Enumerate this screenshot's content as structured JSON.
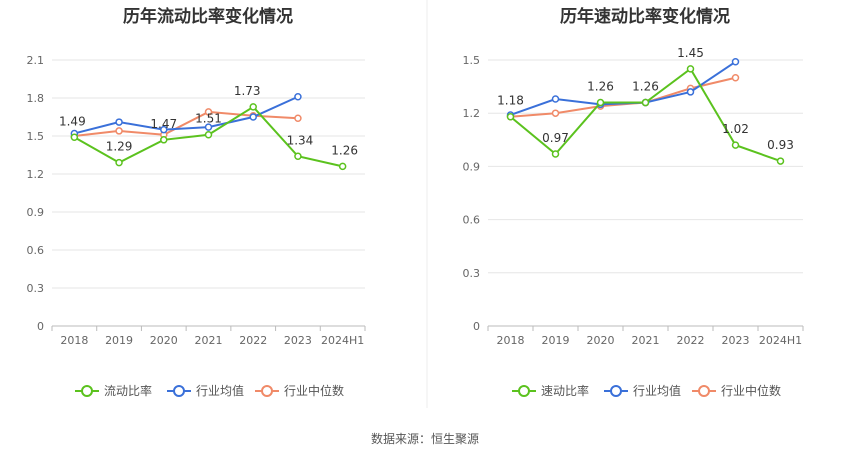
{
  "source_label": "数据来源：恒生聚源",
  "colors": {
    "main": "#5bc21e",
    "avg": "#3a70d9",
    "median": "#f08a68"
  },
  "legend": [
    "行业均值",
    "行业中位数"
  ],
  "chart_data": [
    {
      "type": "line",
      "title": "历年流动比率变化情况",
      "x": [
        "2018",
        "2019",
        "2020",
        "2021",
        "2022",
        "2023",
        "2024H1"
      ],
      "yticks": [
        "0",
        "0.3",
        "0.6",
        "0.9",
        "1.2",
        "1.5",
        "1.8",
        "2.1"
      ],
      "ylim": [
        0,
        2.1
      ],
      "grid": true,
      "legend_position": "bottom",
      "series": [
        {
          "name": "流动比率",
          "values": [
            1.49,
            1.29,
            1.47,
            1.51,
            1.73,
            1.34,
            1.26
          ],
          "labels": [
            "1.49",
            "1.29",
            "1.47",
            "1.51",
            "1.73",
            "1.34",
            "1.26"
          ]
        },
        {
          "name": "行业均值",
          "values": [
            1.52,
            1.61,
            1.55,
            1.57,
            1.65,
            1.81,
            null
          ]
        },
        {
          "name": "行业中位数",
          "values": [
            1.5,
            1.54,
            1.51,
            1.69,
            1.66,
            1.64,
            null
          ]
        }
      ]
    },
    {
      "type": "line",
      "title": "历年速动比率变化情况",
      "x": [
        "2018",
        "2019",
        "2020",
        "2021",
        "2022",
        "2023",
        "2024H1"
      ],
      "yticks": [
        "0",
        "0.3",
        "0.6",
        "0.9",
        "1.2",
        "1.5"
      ],
      "ylim": [
        0,
        1.5
      ],
      "grid": true,
      "legend_position": "bottom",
      "series": [
        {
          "name": "速动比率",
          "values": [
            1.18,
            0.97,
            1.26,
            1.26,
            1.45,
            1.02,
            0.93
          ],
          "labels": [
            "1.18",
            "0.97",
            "1.26",
            "1.26",
            "1.45",
            "1.02",
            "0.93"
          ]
        },
        {
          "name": "行业均值",
          "values": [
            1.19,
            1.28,
            1.25,
            1.26,
            1.32,
            1.49,
            null
          ]
        },
        {
          "name": "行业中位数",
          "values": [
            1.18,
            1.2,
            1.24,
            1.26,
            1.34,
            1.4,
            null
          ]
        }
      ]
    }
  ]
}
